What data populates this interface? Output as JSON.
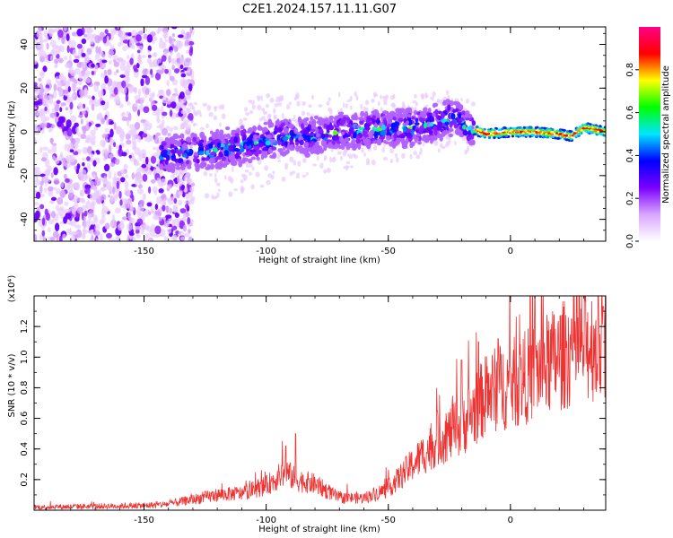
{
  "title": "C2E1.2024.157.11.11.G07",
  "chart_data": [
    {
      "type": "heatmap",
      "xlabel": "Height of straight line (km)",
      "ylabel": "Frequency (Hz)",
      "xlim": [
        -195,
        39
      ],
      "ylim": [
        -50,
        48
      ],
      "xticks": [
        -150,
        -100,
        -50,
        0
      ],
      "yticks": [
        -40,
        -20,
        0,
        20,
        40
      ],
      "xtick_labels": [
        "-150",
        "-100",
        "-50",
        "0"
      ],
      "ytick_labels": [
        "-40",
        "-20",
        "0",
        "20",
        "40"
      ],
      "grid": false,
      "colorbar": {
        "label": "Normalized spectral amplitude",
        "range": [
          0,
          1
        ],
        "ticks": [
          0.0,
          0.2,
          0.4,
          0.6,
          0.8
        ],
        "tick_labels": [
          "0.0",
          "0.2",
          "0.4",
          "0.6",
          "0.8"
        ],
        "colors": [
          "#ffffff",
          "#d9a6ff",
          "#7a00ff",
          "#0000ff",
          "#00e5ff",
          "#00ff00",
          "#ffff00",
          "#ff0000",
          "#ff0088"
        ]
      },
      "ridge": {
        "description_points_x": [
          -142,
          -130,
          -120,
          -110,
          -100,
          -90,
          -80,
          -70,
          -60,
          -50,
          -40,
          -30,
          -22,
          -18,
          -15,
          -10,
          0,
          10,
          20,
          25,
          30,
          35,
          39
        ],
        "description_points_y": [
          -10,
          -9,
          -8,
          -6,
          -4,
          -2,
          -2,
          0,
          1,
          2,
          2,
          4,
          7,
          2,
          1,
          -1,
          0,
          0,
          -1,
          -2,
          2,
          1,
          0
        ]
      }
    },
    {
      "type": "line",
      "xlabel": "Height of straight line (km)",
      "ylabel": "SNR (10 * v/v)",
      "y_multiplier": "(x10⁴)",
      "xlim": [
        -195,
        39
      ],
      "ylim": [
        0,
        1.4
      ],
      "xticks": [
        -150,
        -100,
        -50,
        0
      ],
      "yticks": [
        0.2,
        0.4,
        0.6,
        0.8,
        1.0,
        1.2
      ],
      "xtick_labels": [
        "-150",
        "-100",
        "-50",
        "0"
      ],
      "ytick_labels": [
        "0.2",
        "0.4",
        "0.6",
        "0.8",
        "1.0",
        "1.2"
      ],
      "grid": false,
      "color": "#ee3333",
      "envelope": {
        "x": [
          -195,
          -150,
          -140,
          -130,
          -120,
          -110,
          -100,
          -92,
          -88,
          -80,
          -70,
          -60,
          -50,
          -40,
          -30,
          -20,
          -15,
          -10,
          -5,
          0,
          10,
          20,
          30,
          39
        ],
        "y": [
          0.02,
          0.03,
          0.04,
          0.07,
          0.1,
          0.11,
          0.16,
          0.25,
          0.2,
          0.17,
          0.08,
          0.08,
          0.14,
          0.3,
          0.45,
          0.55,
          0.65,
          0.75,
          0.8,
          0.82,
          0.9,
          1.0,
          1.08,
          1.1
        ]
      },
      "spikes": [
        {
          "x": -92,
          "y": 0.42
        },
        {
          "x": -88,
          "y": 0.5
        },
        {
          "x": -30,
          "y": 0.65
        },
        {
          "x": -20,
          "y": 0.98
        },
        {
          "x": -13,
          "y": 1.1
        },
        {
          "x": -5,
          "y": 1.12
        },
        {
          "x": 10,
          "y": 1.4
        },
        {
          "x": 25,
          "y": 1.25
        },
        {
          "x": 38,
          "y": 1.33
        }
      ]
    }
  ]
}
